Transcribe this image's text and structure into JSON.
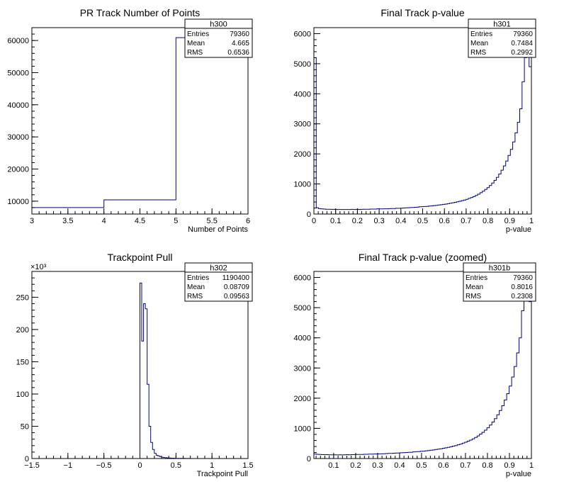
{
  "chart_data": [
    {
      "type": "histogram",
      "title": "PR Track Number of Points",
      "xlabel": "Number of Points",
      "ylabel": "",
      "xlim": [
        3,
        6
      ],
      "ylim": [
        6000,
        64000
      ],
      "x_ticks": [
        3,
        3.5,
        4,
        4.5,
        5,
        5.5,
        6
      ],
      "x_tick_labels": [
        "3",
        "3.5",
        "4",
        "4.5",
        "5",
        "5.5",
        "6"
      ],
      "y_ticks": [
        10000,
        20000,
        30000,
        40000,
        50000,
        60000
      ],
      "y_tick_labels": [
        "10000",
        "20000",
        "30000",
        "40000",
        "50000",
        "60000"
      ],
      "y_exponent": "",
      "bin_edges": [
        3,
        4,
        5,
        6
      ],
      "bin_counts": [
        8000,
        10400,
        60900
      ],
      "stats": {
        "name": "h300",
        "rows": [
          {
            "label": "Entries",
            "value": "79360"
          },
          {
            "label": "Mean",
            "value": "4.665"
          },
          {
            "label": "RMS",
            "value": "0.6536"
          }
        ]
      }
    },
    {
      "type": "histogram",
      "title": "Final Track p-value",
      "xlabel": "p-value",
      "ylabel": "",
      "xlim": [
        0,
        1
      ],
      "ylim": [
        0,
        6200
      ],
      "x_ticks": [
        0,
        0.1,
        0.2,
        0.3,
        0.4,
        0.5,
        0.6,
        0.7,
        0.8,
        0.9,
        1
      ],
      "x_tick_labels": [
        "0",
        "0.1",
        "0.2",
        "0.3",
        "0.4",
        "0.5",
        "0.6",
        "0.7",
        "0.8",
        "0.9",
        "1"
      ],
      "y_ticks": [
        0,
        1000,
        2000,
        3000,
        4000,
        5000,
        6000
      ],
      "y_tick_labels": [
        "0",
        "1000",
        "2000",
        "3000",
        "4000",
        "5000",
        "6000"
      ],
      "y_exponent": "",
      "bin_edges_range": [
        0,
        1
      ],
      "bin_counts": [
        5200,
        210,
        180,
        170,
        165,
        160,
        160,
        155,
        155,
        150,
        150,
        150,
        150,
        150,
        150,
        150,
        155,
        150,
        155,
        150,
        155,
        160,
        160,
        160,
        165,
        165,
        165,
        175,
        170,
        170,
        175,
        175,
        180,
        185,
        185,
        190,
        190,
        195,
        200,
        205,
        210,
        215,
        220,
        225,
        230,
        240,
        245,
        250,
        255,
        265,
        270,
        280,
        290,
        300,
        310,
        320,
        330,
        345,
        360,
        375,
        390,
        405,
        425,
        445,
        465,
        490,
        520,
        550,
        580,
        620,
        660,
        710,
        760,
        820,
        880,
        950,
        1030,
        1120,
        1220,
        1330,
        1460,
        1600,
        1760,
        1950,
        2150,
        2400,
        2700,
        3050,
        3500,
        4400,
        5200,
        5800,
        4900
      ],
      "stats": {
        "name": "h301",
        "rows": [
          {
            "label": "Entries",
            "value": "79360"
          },
          {
            "label": "Mean",
            "value": "0.7484"
          },
          {
            "label": "RMS",
            "value": "0.2992"
          }
        ]
      }
    },
    {
      "type": "histogram",
      "title": "Trackpoint Pull",
      "xlabel": "Trackpoint Pull",
      "ylabel": "",
      "xlim": [
        -1.5,
        1.5
      ],
      "ylim": [
        0,
        290
      ],
      "x_ticks": [
        -1.5,
        -1,
        -0.5,
        0,
        0.5,
        1,
        1.5
      ],
      "x_tick_labels": [
        "−1.5",
        "−1",
        "−0.5",
        "0",
        "0.5",
        "1",
        "1.5"
      ],
      "y_ticks": [
        0,
        50,
        100,
        150,
        200,
        250
      ],
      "y_tick_labels": [
        "0",
        "50",
        "100",
        "150",
        "200",
        "250"
      ],
      "y_exponent": "×10³",
      "bin_edges_range": [
        0,
        0.7
      ],
      "bin_counts": [
        272,
        182,
        240,
        232,
        115,
        50,
        25,
        14,
        8,
        5,
        4,
        3,
        2,
        1.5,
        1.2,
        1,
        0.8,
        0.6,
        0.5,
        0.4,
        0.3,
        0.3,
        0.2,
        0.2,
        0.2,
        0.1,
        0.1,
        0.1
      ],
      "stats": {
        "name": "h302",
        "rows": [
          {
            "label": "Entries",
            "value": "1190400"
          },
          {
            "label": "Mean",
            "value": "0.08709"
          },
          {
            "label": "RMS",
            "value": "0.09563"
          }
        ]
      }
    },
    {
      "type": "histogram",
      "title": "Final Track p-value (zoomed)",
      "xlabel": "p-value",
      "ylabel": "",
      "xlim": [
        0.01,
        1
      ],
      "ylim": [
        0,
        6200
      ],
      "x_ticks": [
        0.1,
        0.2,
        0.3,
        0.4,
        0.5,
        0.6,
        0.7,
        0.8,
        0.9,
        1
      ],
      "x_tick_labels": [
        "0.1",
        "0.2",
        "0.3",
        "0.4",
        "0.5",
        "0.6",
        "0.7",
        "0.8",
        "0.9",
        "1"
      ],
      "y_ticks": [
        0,
        1000,
        2000,
        3000,
        4000,
        5000,
        6000
      ],
      "y_tick_labels": [
        "0",
        "1000",
        "2000",
        "3000",
        "4000",
        "5000",
        "6000"
      ],
      "y_exponent": "",
      "bin_edges_range": [
        0.01,
        1
      ],
      "bin_counts": [
        150,
        140,
        135,
        130,
        130,
        130,
        125,
        125,
        125,
        120,
        125,
        120,
        125,
        130,
        125,
        130,
        130,
        135,
        135,
        135,
        140,
        140,
        145,
        145,
        150,
        150,
        155,
        155,
        160,
        165,
        170,
        170,
        175,
        180,
        185,
        190,
        195,
        200,
        205,
        210,
        220,
        225,
        230,
        240,
        245,
        255,
        265,
        275,
        285,
        300,
        310,
        325,
        340,
        355,
        370,
        390,
        410,
        430,
        455,
        480,
        510,
        540,
        575,
        610,
        650,
        700,
        750,
        810,
        870,
        940,
        1020,
        1110,
        1210,
        1320,
        1450,
        1590,
        1750,
        1940,
        2150,
        2400,
        2700,
        3050,
        3500,
        4000,
        4900,
        5700,
        5900,
        5200
      ],
      "stats": {
        "name": "h301b",
        "rows": [
          {
            "label": "Entries",
            "value": "79360"
          },
          {
            "label": "Mean",
            "value": "0.8016"
          },
          {
            "label": "RMS",
            "value": "0.2308"
          }
        ]
      }
    }
  ]
}
